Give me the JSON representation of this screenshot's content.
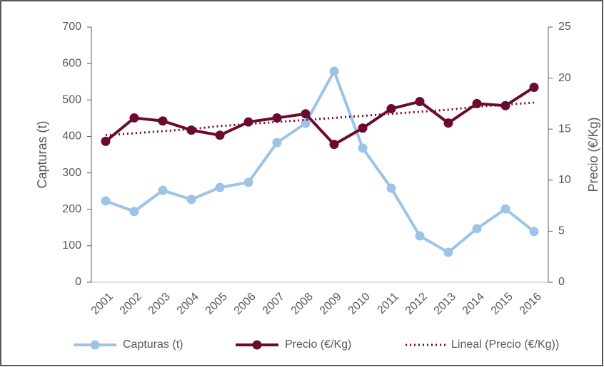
{
  "chart_data": {
    "type": "line",
    "categories": [
      "2001",
      "2002",
      "2003",
      "2004",
      "2005",
      "2006",
      "2007",
      "2008",
      "2009",
      "2010",
      "2011",
      "2012",
      "2013",
      "2014",
      "2015",
      "2016"
    ],
    "ylabel": "Capturas (t)",
    "y2label": "Precio (€/Kg)",
    "ylim": [
      0,
      700
    ],
    "yticks": [
      0,
      100,
      200,
      300,
      400,
      500,
      600,
      700
    ],
    "y2lim": [
      0,
      25
    ],
    "y2ticks": [
      0,
      5,
      10,
      15,
      20,
      25
    ],
    "legend": "bottom",
    "series": [
      {
        "name": "Capturas (t)",
        "color": "#9dc3e6",
        "style": "solid",
        "markers": true,
        "values": [
          223,
          194,
          252,
          227,
          260,
          274,
          383,
          436,
          579,
          368,
          258,
          127,
          82,
          147,
          201,
          139
        ]
      },
      {
        "name": "Precio (€/Kg)",
        "color": "#6b0a2e",
        "style": "solid",
        "markers": true,
        "axis": "y2",
        "values": [
          13.8,
          16.1,
          15.8,
          14.9,
          14.4,
          15.7,
          16.1,
          16.5,
          13.5,
          15.1,
          17.0,
          17.7,
          15.6,
          17.5,
          17.3,
          19.1
        ]
      },
      {
        "name": "Lineal (Precio (€/Kg))",
        "color": "#6b0a2e",
        "style": "dotted",
        "markers": false,
        "axis": "y2",
        "values": [
          14.4,
          14.6,
          14.8,
          15.0,
          15.3,
          15.5,
          15.7,
          15.9,
          16.1,
          16.3,
          16.5,
          16.7,
          16.9,
          17.2,
          17.4,
          17.6
        ]
      }
    ]
  }
}
